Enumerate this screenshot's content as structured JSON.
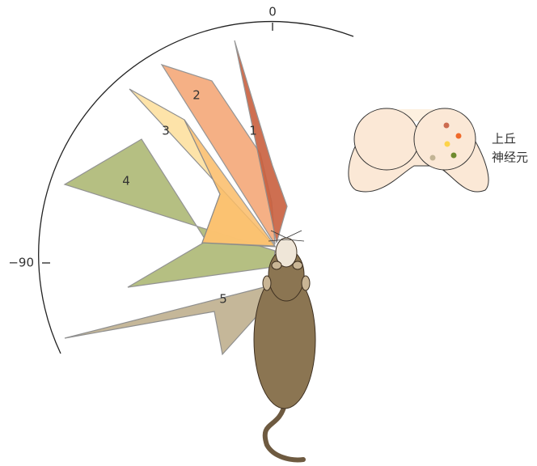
{
  "axis_labels": {
    "top": "0",
    "left": "−90"
  },
  "regions": [
    {
      "label": "1"
    },
    {
      "label": "2"
    },
    {
      "label": "3"
    },
    {
      "label": "4"
    },
    {
      "label": "5"
    }
  ],
  "brain_label": {
    "line1": "上丘",
    "line2": "神经元"
  }
}
